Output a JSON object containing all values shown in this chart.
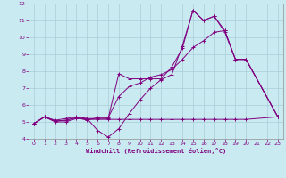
{
  "background_color": "#c8eaf0",
  "grid_color": "#aaccd8",
  "line_color": "#800080",
  "marker_color": "#800080",
  "xlabel": "Windchill (Refroidissement éolien,°C)",
  "xlim": [
    -0.5,
    23.5
  ],
  "ylim": [
    4,
    12
  ],
  "xticks": [
    0,
    1,
    2,
    3,
    4,
    5,
    6,
    7,
    8,
    9,
    10,
    11,
    12,
    13,
    14,
    15,
    16,
    17,
    18,
    19,
    20,
    21,
    22,
    23
  ],
  "yticks": [
    4,
    5,
    6,
    7,
    8,
    9,
    10,
    11,
    12
  ],
  "series": [
    {
      "x": [
        0,
        1,
        2,
        3,
        4,
        5,
        6,
        7,
        8,
        9,
        10,
        11,
        12,
        13,
        14,
        15,
        16,
        17,
        18,
        19,
        20,
        23
      ],
      "y": [
        4.9,
        5.3,
        5.1,
        5.2,
        5.3,
        5.2,
        4.5,
        4.1,
        4.6,
        5.5,
        6.3,
        7.0,
        7.5,
        7.8,
        9.5,
        11.6,
        11.0,
        11.25,
        10.4,
        8.7,
        8.7,
        5.3
      ]
    },
    {
      "x": [
        0,
        1,
        2,
        3,
        4,
        5,
        6,
        7,
        8,
        9,
        10,
        11,
        12,
        13,
        14,
        15,
        16,
        17,
        18,
        19,
        20,
        23
      ],
      "y": [
        4.9,
        5.3,
        5.05,
        5.1,
        5.25,
        5.1,
        5.25,
        5.25,
        6.5,
        7.1,
        7.3,
        7.65,
        7.8,
        8.1,
        8.7,
        9.4,
        9.8,
        10.3,
        10.4,
        8.7,
        8.7,
        5.3
      ]
    },
    {
      "x": [
        0,
        1,
        2,
        3,
        4,
        5,
        6,
        7,
        8,
        9,
        10,
        11,
        12,
        13,
        14,
        15,
        16,
        17,
        18,
        19,
        20,
        23
      ],
      "y": [
        4.9,
        5.3,
        5.0,
        5.0,
        5.2,
        5.2,
        5.2,
        5.2,
        7.85,
        7.55,
        7.55,
        7.55,
        7.55,
        8.25,
        9.35,
        11.6,
        11.0,
        11.25,
        10.3,
        8.7,
        8.7,
        5.3
      ]
    },
    {
      "x": [
        0,
        1,
        2,
        3,
        4,
        5,
        6,
        7,
        8,
        9,
        10,
        11,
        12,
        13,
        14,
        15,
        16,
        17,
        18,
        19,
        20,
        23
      ],
      "y": [
        4.9,
        5.3,
        5.05,
        5.1,
        5.25,
        5.15,
        5.15,
        5.15,
        5.15,
        5.15,
        5.15,
        5.15,
        5.15,
        5.15,
        5.15,
        5.15,
        5.15,
        5.15,
        5.15,
        5.15,
        5.15,
        5.3
      ]
    }
  ]
}
